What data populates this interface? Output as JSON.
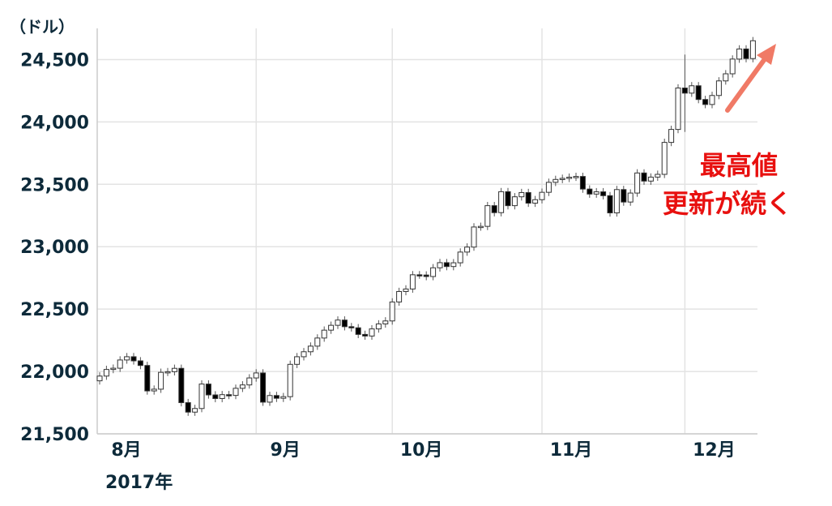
{
  "chart_data": {
    "type": "candlestick",
    "y_unit": "（ドル）",
    "year_label": "2017年",
    "annotation": [
      "最高値",
      "更新が続く"
    ],
    "up_color": "#ffffff",
    "down_color": "#000000",
    "grid": true,
    "ylim": [
      21500,
      24750
    ],
    "yticks": [
      {
        "value": 21500,
        "label": "21,500"
      },
      {
        "value": 22000,
        "label": "22,000"
      },
      {
        "value": 22500,
        "label": "22,500"
      },
      {
        "value": 23000,
        "label": "23,000"
      },
      {
        "value": 23500,
        "label": "23,500"
      },
      {
        "value": 24000,
        "label": "24,000"
      },
      {
        "value": 24500,
        "label": "24,500"
      }
    ],
    "categories": [
      "8月",
      null,
      null,
      null,
      null,
      null,
      null,
      null,
      null,
      null,
      null,
      null,
      null,
      null,
      null,
      null,
      null,
      null,
      null,
      null,
      null,
      null,
      null,
      "9月",
      null,
      null,
      null,
      null,
      null,
      null,
      null,
      null,
      null,
      null,
      null,
      null,
      null,
      null,
      null,
      null,
      null,
      null,
      null,
      "10月",
      null,
      null,
      null,
      null,
      null,
      null,
      null,
      null,
      null,
      null,
      null,
      null,
      null,
      null,
      null,
      null,
      null,
      null,
      null,
      null,
      null,
      "11月",
      null,
      null,
      null,
      null,
      null,
      null,
      null,
      null,
      null,
      null,
      null,
      null,
      null,
      null,
      null,
      null,
      null,
      null,
      null,
      null,
      "12月",
      null,
      null,
      null,
      null,
      null,
      null,
      null,
      null,
      null,
      null
    ],
    "open": [
      21925,
      21963,
      22016,
      22026,
      22092,
      22118,
      22085,
      22048,
      21844,
      21858,
      21993,
      21998,
      22025,
      21750,
      21674,
      21703,
      21899,
      21812,
      21783,
      21814,
      21808,
      21865,
      21892,
      21948,
      21988,
      21754,
      21807,
      21785,
      21798,
      22057,
      22118,
      22158,
      22203,
      22268,
      22331,
      22370,
      22412,
      22359,
      22350,
      22297,
      22284,
      22341,
      22381,
      22405,
      22557,
      22641,
      22661,
      22775,
      22773,
      22761,
      22831,
      22872,
      22841,
      22871,
      22957,
      22997,
      23158,
      23163,
      23329,
      23273,
      23441,
      23329,
      23400,
      23434,
      23349,
      23377,
      23436,
      23516,
      23539,
      23548,
      23557,
      23563,
      23462,
      23422,
      23440,
      23409,
      23271,
      23458,
      23358,
      23430,
      23591,
      23526,
      23558,
      23580,
      23836,
      23940,
      24272,
      24231,
      24290,
      24180,
      24140,
      24212,
      24329,
      24386,
      24504,
      24585,
      24508
    ],
    "close": [
      21963,
      22016,
      22026,
      22092,
      22118,
      22085,
      22048,
      21844,
      21858,
      21993,
      21998,
      22025,
      21750,
      21674,
      21703,
      21899,
      21812,
      21783,
      21814,
      21808,
      21865,
      21892,
      21948,
      21988,
      21754,
      21807,
      21785,
      21798,
      22057,
      22118,
      22158,
      22203,
      22268,
      22331,
      22370,
      22412,
      22359,
      22350,
      22297,
      22284,
      22341,
      22381,
      22405,
      22557,
      22641,
      22661,
      22775,
      22773,
      22761,
      22831,
      22872,
      22841,
      22871,
      22957,
      22997,
      23158,
      23163,
      23329,
      23273,
      23441,
      23329,
      23400,
      23434,
      23349,
      23377,
      23436,
      23516,
      23539,
      23548,
      23557,
      23563,
      23462,
      23422,
      23440,
      23409,
      23271,
      23458,
      23358,
      23430,
      23591,
      23526,
      23558,
      23580,
      23836,
      23940,
      24272,
      24231,
      24290,
      24180,
      24140,
      24212,
      24329,
      24386,
      24504,
      24585,
      24508,
      24651
    ],
    "high": [
      21993,
      22046,
      22056,
      22122,
      22148,
      22148,
      22115,
      22078,
      21888,
      22023,
      22028,
      22055,
      22055,
      21780,
      21733,
      21929,
      21929,
      21842,
      21844,
      21844,
      21895,
      21922,
      21978,
      22018,
      22018,
      21837,
      21837,
      21828,
      22087,
      22148,
      22188,
      22233,
      22298,
      22361,
      22400,
      22442,
      22442,
      22389,
      22380,
      22327,
      22371,
      22411,
      22435,
      22587,
      22671,
      22691,
      22805,
      22805,
      22803,
      22861,
      22902,
      22902,
      22901,
      22987,
      23027,
      23188,
      23193,
      23359,
      23359,
      23471,
      23471,
      23430,
      23464,
      23464,
      23407,
      23466,
      23546,
      23569,
      23578,
      23587,
      23593,
      23593,
      23492,
      23470,
      23470,
      23439,
      23488,
      23488,
      23460,
      23621,
      23621,
      23588,
      23610,
      23866,
      23970,
      24302,
      24540,
      24320,
      24320,
      24210,
      24242,
      24359,
      24416,
      24534,
      24615,
      24615,
      24681
    ],
    "low": [
      21895,
      21933,
      21986,
      21996,
      22062,
      22055,
      22018,
      21814,
      21814,
      21828,
      21963,
      21968,
      21720,
      21644,
      21644,
      21673,
      21782,
      21753,
      21753,
      21778,
      21778,
      21835,
      21862,
      21918,
      21724,
      21724,
      21755,
      21755,
      21768,
      22027,
      22088,
      22128,
      22173,
      22238,
      22301,
      22340,
      22329,
      22320,
      22267,
      22254,
      22254,
      22311,
      22351,
      22375,
      22527,
      22611,
      22631,
      22743,
      22731,
      22731,
      22801,
      22811,
      22811,
      22841,
      22927,
      22967,
      23128,
      23133,
      23243,
      23243,
      23299,
      23299,
      23370,
      23319,
      23319,
      23347,
      23406,
      23486,
      23509,
      23518,
      23527,
      23432,
      23392,
      23392,
      23379,
      23241,
      23241,
      23328,
      23328,
      23400,
      23496,
      23496,
      23528,
      23550,
      23806,
      23910,
      23920,
      24201,
      24150,
      24110,
      24110,
      24182,
      24299,
      24356,
      24474,
      24478,
      24478
    ]
  }
}
